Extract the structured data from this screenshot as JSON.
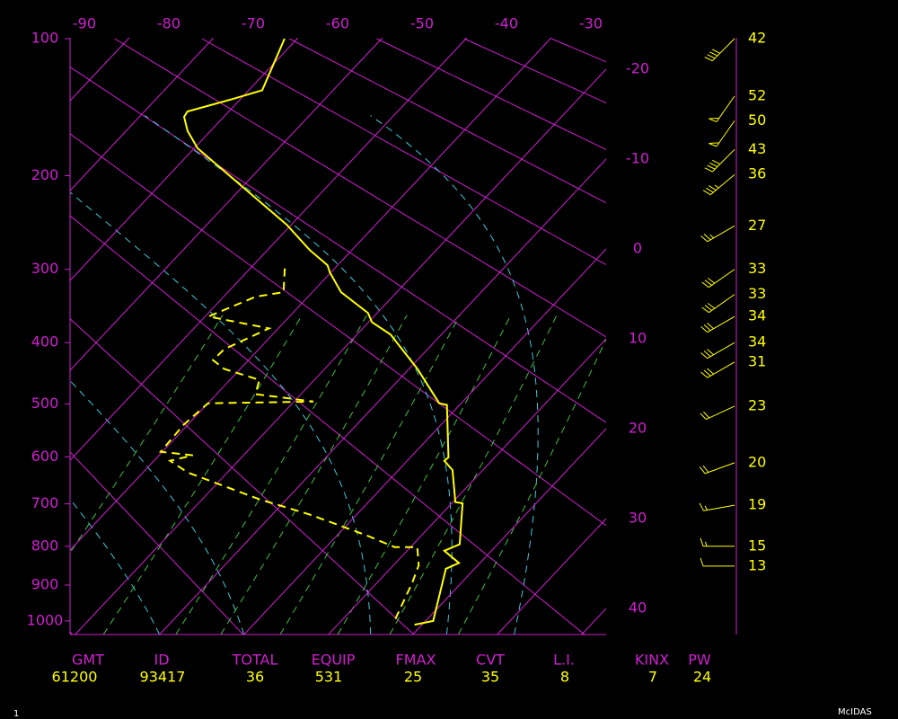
{
  "chart_data": {
    "type": "skewt",
    "ylim": [
      100,
      1040
    ],
    "yticks": [
      100,
      200,
      300,
      400,
      500,
      600,
      700,
      800,
      900,
      1000
    ],
    "xticks": [
      -90,
      -80,
      -70,
      -60,
      -50,
      -40,
      -30
    ],
    "isotherm_ticks": [
      -20,
      -10,
      0,
      10,
      20,
      30,
      40
    ],
    "grid_color": "#d020d0",
    "series": [
      {
        "color": "#ffff00",
        "style": "solid",
        "pressure": [
          100,
          132,
          138,
          147,
          151,
          162,
          176,
          233,
          249,
          277,
          295,
          304,
          329,
          357,
          370,
          388,
          396,
          441,
          499,
          502,
          601,
          608,
          627,
          696,
          699,
          795,
          811,
          842,
          857,
          1000,
          1011
        ],
        "values": [
          -61.5,
          -58.4,
          -60.9,
          -64.9,
          -64.7,
          -62.7,
          -59.6,
          -44.3,
          -40.5,
          -35.0,
          -31.2,
          -30.1,
          -26.6,
          -21.1,
          -19.6,
          -16.0,
          -14.9,
          -9.0,
          -2.6,
          -1.5,
          4.5,
          4.4,
          6.4,
          10.3,
          11.3,
          15.5,
          14.4,
          17.5,
          16.6,
          20.9,
          19.1
        ]
      },
      {
        "color": "#ffff00",
        "style": "dashed",
        "pressure": [
          299,
          329,
          335,
          362,
          379,
          410,
          427,
          441,
          459,
          483,
          496,
          499,
          538,
          590,
          597,
          608,
          632,
          690,
          724,
          774,
          802,
          802,
          848,
          895,
          1000
        ],
        "values": [
          -35.9,
          -33.4,
          -36.2,
          -39.6,
          -31.1,
          -34.1,
          -34.2,
          -31.9,
          -26.5,
          -25.4,
          -17.7,
          -30.0,
          -30.5,
          -30.2,
          -26.0,
          -28.1,
          -24.7,
          -13.2,
          -5.6,
          3.6,
          8.1,
          10.8,
          13.0,
          14.2,
          16.3
        ]
      }
    ],
    "winds": {
      "color": "#ffff00",
      "pressure": [
        100,
        136,
        154,
        177,
        199,
        250,
        300,
        332,
        362,
        400,
        430,
        504,
        612,
        703,
        800,
        850
      ],
      "speed": [
        42,
        52,
        50,
        43,
        36,
        27,
        33,
        33,
        34,
        34,
        31,
        23,
        20,
        19,
        15,
        13
      ],
      "direction": [
        225,
        215,
        215,
        225,
        230,
        240,
        235,
        235,
        240,
        240,
        240,
        245,
        250,
        260,
        270,
        270
      ]
    },
    "stats": [
      {
        "label": "GMT",
        "value": 61200
      },
      {
        "label": "ID",
        "value": 93417
      },
      {
        "label": "TOTAL",
        "value": 36
      },
      {
        "label": "EQUIP",
        "value": 531
      },
      {
        "label": "FMAX",
        "value": 25
      },
      {
        "label": "CVT",
        "value": 35
      },
      {
        "label": "L.I.",
        "value": 8
      },
      {
        "label": "KINX",
        "value": 7
      },
      {
        "label": "PW",
        "value": 24
      }
    ]
  },
  "footer": {
    "frame": 1,
    "source": "McIDAS"
  }
}
